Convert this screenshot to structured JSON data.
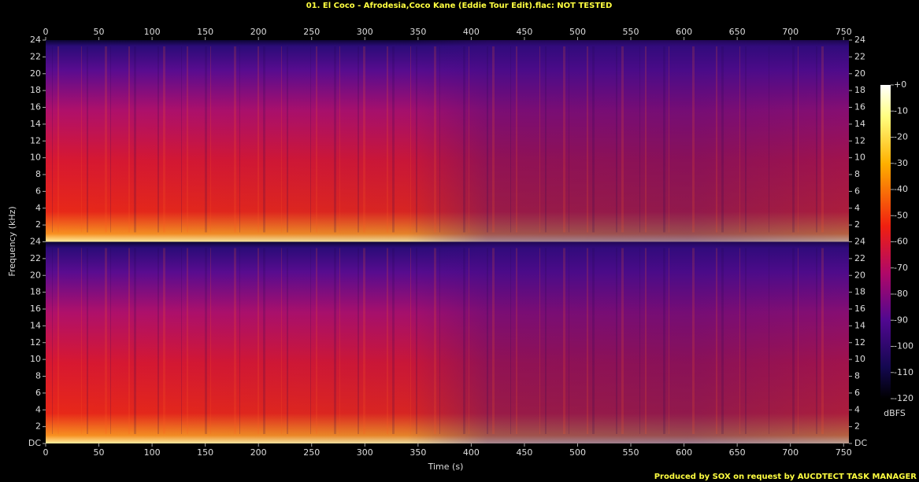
{
  "chart_data": {
    "type": "spectrogram",
    "title": "01. El Coco - Afrodesia,Coco Kane (Eddie Tour Edit).flac: NOT TESTED",
    "x_label": "Time (s)",
    "y_label": "Frequency (kHz)",
    "xlim": [
      0,
      755
    ],
    "xticks": [
      0,
      50,
      100,
      150,
      200,
      250,
      300,
      350,
      400,
      450,
      500,
      550,
      600,
      650,
      700,
      750
    ],
    "ylim": [
      0,
      24
    ],
    "channels": [
      {
        "yticks": [
          2,
          4,
          6,
          8,
          10,
          12,
          14,
          16,
          18,
          20,
          22,
          24
        ]
      },
      {
        "yticks": [
          {
            "value": 0,
            "label": "DC"
          },
          2,
          4,
          6,
          8,
          10,
          12,
          14,
          16,
          18,
          20,
          22,
          24
        ]
      }
    ],
    "colorbar_label": "dBFS",
    "colorbar_lim": [
      -120,
      0
    ],
    "colorbar_ticks": [
      {
        "value": 0,
        "label": "+0"
      },
      -10,
      -20,
      -30,
      -40,
      -50,
      -60,
      -70,
      -80,
      -90,
      -100,
      -110,
      -120
    ],
    "footer": "Produced by SOX on request by AUCDTECT TASK MANAGER"
  }
}
